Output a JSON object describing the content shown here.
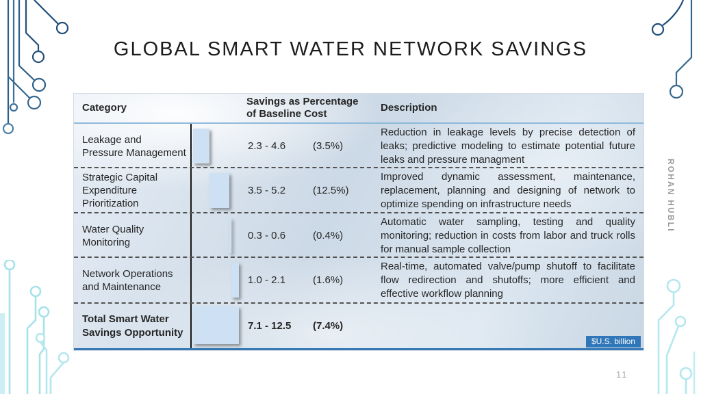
{
  "slide": {
    "title": "GLOBAL SMART WATER NETWORK SAVINGS",
    "page_number": "11",
    "vertical_author": "ROHAN HUBLI"
  },
  "table": {
    "headers": {
      "category": "Category",
      "savings": "Savings as Percentage of Baseline Cost",
      "description": "Description"
    },
    "unit_badge": "$U.S. billion",
    "rows": [
      {
        "category": "Leakage and\nPressure Management",
        "range": "2.3 - 4.6",
        "percent": "(3.5%)",
        "description": "Reduction in leakage levels by precise detection of leaks; predictive modeling to estimate potential future leaks and pressure managment"
      },
      {
        "category": "Strategic Capital\nExpenditure Prioritization",
        "range": "3.5 - 5.2",
        "percent": "(12.5%)",
        "description": "Improved dynamic assessment, maintenance, replacement, planning and designing of network to optimize spending on infrastructure needs"
      },
      {
        "category": "Water Quality Monitoring",
        "range": "0.3 - 0.6",
        "percent": "(0.4%)",
        "description": "Automatic water sampling, testing and quality monitoring; reduction in costs from labor and truck rolls for manual sample collection"
      },
      {
        "category": "Network Operations\nand Maintenance",
        "range": "1.0 - 2.1",
        "percent": "(1.6%)",
        "description": "Real-time, automated valve/pump shutoff to facilitate flow redirection and shutoffs; more efficient and effective workflow planning"
      },
      {
        "category": "Total Smart Water\nSavings Opportunity",
        "range": "7.1 - 12.5",
        "percent": "(7.4%)",
        "description": ""
      }
    ]
  },
  "chart_data": {
    "type": "bar",
    "subtype": "waterfall",
    "title": "Global smart water network savings",
    "unit": "$U.S. billion",
    "categories": [
      "Leakage and Pressure Management",
      "Strategic Capital Expenditure Prioritization",
      "Water Quality Monitoring",
      "Network Operations and Maintenance",
      "Total Smart Water Savings Opportunity"
    ],
    "range_low": [
      2.3,
      3.5,
      0.3,
      1.0,
      7.1
    ],
    "range_high": [
      4.6,
      5.2,
      0.6,
      2.1,
      12.5
    ],
    "midpoints": [
      3.45,
      4.35,
      0.45,
      1.55,
      9.8
    ],
    "percent_of_baseline_cost": [
      3.5,
      12.5,
      0.4,
      1.6,
      7.4
    ],
    "bar_segments": [
      [
        0,
        3.45
      ],
      [
        3.45,
        7.8
      ],
      [
        7.8,
        8.25
      ],
      [
        8.25,
        9.8
      ],
      [
        0,
        9.8
      ]
    ],
    "axis": {
      "baseline_at": 0,
      "orientation": "horizontal",
      "gridlines": false
    },
    "colors": {
      "bar_fill": "#cde0f4",
      "axis_line": "#141414",
      "badge_blue": "#2f77b8"
    }
  },
  "colors": {
    "accent_blue": "#2f77b8",
    "circuit_dark": "#1d4d78",
    "circuit_light": "#a5e2ea",
    "title_text": "#1c1c1c"
  }
}
